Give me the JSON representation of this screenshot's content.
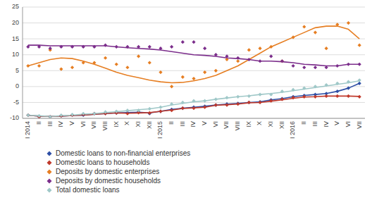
{
  "chart_data": {
    "type": "line",
    "categories": [
      "I 2014",
      "II",
      "III",
      "IV",
      "V",
      "VI",
      "VII",
      "VIII",
      "IX",
      "X",
      "XI",
      "XII",
      "I 2015",
      "II",
      "III",
      "IV",
      "V",
      "VI",
      "VII",
      "VIII",
      "IX",
      "X",
      "XI",
      "XII",
      "I 2016",
      "II",
      "III",
      "IV",
      "V",
      "VI",
      "VII"
    ],
    "ylim": [
      -10,
      25
    ],
    "yticks": [
      -10,
      -5,
      0,
      5,
      10,
      15,
      20,
      25
    ],
    "grid": true,
    "legend": "bottom",
    "marker": "diamond",
    "series": [
      {
        "name": "Domestic loans to non-financial enterprises",
        "color": "#2e4fa5",
        "values": [
          -9.0,
          -9.5,
          -9.5,
          -9.2,
          -9.0,
          -9.0,
          -8.5,
          -8.5,
          -8.3,
          -8.2,
          -8.0,
          -8.5,
          -7.8,
          -7.2,
          -6.8,
          -6.5,
          -6.2,
          -5.8,
          -5.5,
          -5.3,
          -5.0,
          -4.8,
          -4.2,
          -3.8,
          -3.2,
          -2.8,
          -2.5,
          -2.2,
          -1.5,
          -0.5,
          1.0
        ],
        "line_values": [
          -9.0,
          -9.3,
          -9.4,
          -9.3,
          -9.1,
          -9.0,
          -8.7,
          -8.5,
          -8.3,
          -8.2,
          -8.1,
          -8.3,
          -7.8,
          -7.2,
          -6.8,
          -6.5,
          -6.2,
          -5.8,
          -5.5,
          -5.3,
          -5.0,
          -4.8,
          -4.2,
          -3.8,
          -3.2,
          -2.8,
          -2.5,
          -2.2,
          -1.5,
          -0.5,
          1.0
        ]
      },
      {
        "name": "Domestic loans to households",
        "color": "#c0392b",
        "values": [
          -9.0,
          -9.5,
          -9.5,
          -9.2,
          -9.0,
          -8.8,
          -8.5,
          -8.5,
          -8.3,
          -8.5,
          -8.2,
          -8.3,
          -7.8,
          -7.5,
          -6.8,
          -6.8,
          -6.5,
          -5.8,
          -5.8,
          -5.5,
          -5.0,
          -5.0,
          -4.5,
          -4.0,
          -3.5,
          -3.2,
          -3.2,
          -3.0,
          -3.0,
          -3.0,
          -3.2
        ],
        "line_values": [
          -9.0,
          -9.3,
          -9.4,
          -9.3,
          -9.1,
          -9.0,
          -8.7,
          -8.5,
          -8.3,
          -8.4,
          -8.3,
          -8.2,
          -7.8,
          -7.4,
          -6.9,
          -6.7,
          -6.5,
          -5.9,
          -5.7,
          -5.5,
          -5.1,
          -5.0,
          -4.6,
          -4.2,
          -3.7,
          -3.3,
          -3.2,
          -3.0,
          -3.0,
          -3.0,
          -3.1
        ]
      },
      {
        "name": "Deposits by domestic enterprises",
        "color": "#e67e22",
        "values": [
          6.5,
          6.5,
          11.5,
          5.5,
          6.0,
          7.5,
          7.5,
          9.0,
          7.0,
          6.0,
          9.5,
          7.5,
          4.5,
          0.0,
          3.0,
          2.5,
          4.5,
          5.0,
          8.5,
          8.0,
          11.5,
          12.0,
          12.5,
          8.0,
          15.5,
          18.8,
          17.0,
          12.0,
          19.5,
          20.0,
          13.0
        ],
        "line_values": [
          6.5,
          7.5,
          8.5,
          9.0,
          8.8,
          8.0,
          7.0,
          5.8,
          4.5,
          3.5,
          2.8,
          2.0,
          1.5,
          1.2,
          1.3,
          1.8,
          2.5,
          3.5,
          5.0,
          6.5,
          8.5,
          10.5,
          12.5,
          14.0,
          15.5,
          17.0,
          18.5,
          19.0,
          19.0,
          18.0,
          15.0
        ]
      },
      {
        "name": "Deposits by domestic households",
        "color": "#7b2d8b",
        "values": [
          12.5,
          12.5,
          12.0,
          12.5,
          12.5,
          12.5,
          12.5,
          13.0,
          12.5,
          12.5,
          12.5,
          12.5,
          12.0,
          12.5,
          14.0,
          14.0,
          12.0,
          10.0,
          9.5,
          9.0,
          8.5,
          8.0,
          9.5,
          8.0,
          6.5,
          6.0,
          6.0,
          6.0,
          6.5,
          7.0,
          7.0
        ],
        "line_values": [
          13.0,
          13.0,
          12.8,
          12.8,
          12.8,
          12.8,
          12.8,
          12.8,
          12.5,
          12.2,
          12.0,
          11.8,
          11.5,
          11.0,
          10.5,
          10.0,
          9.8,
          9.5,
          9.0,
          8.8,
          8.5,
          8.0,
          8.0,
          7.8,
          7.5,
          7.0,
          6.8,
          6.5,
          6.5,
          7.0,
          7.0
        ]
      },
      {
        "name": "Total domestic loans",
        "color": "#9fc8c8",
        "values": [
          -9.0,
          -9.2,
          -9.5,
          -9.0,
          -8.8,
          -8.5,
          -8.5,
          -8.0,
          -7.8,
          -7.5,
          -7.5,
          -7.0,
          -6.5,
          -5.5,
          -5.0,
          -4.5,
          -4.5,
          -4.0,
          -3.5,
          -3.2,
          -3.0,
          -2.5,
          -2.5,
          -1.5,
          -1.0,
          -0.5,
          0.0,
          0.5,
          1.0,
          1.5,
          2.0
        ],
        "line_values": [
          -9.0,
          -9.2,
          -9.4,
          -9.2,
          -9.0,
          -8.7,
          -8.5,
          -8.2,
          -7.9,
          -7.6,
          -7.3,
          -7.0,
          -6.5,
          -5.8,
          -5.3,
          -4.8,
          -4.5,
          -4.0,
          -3.6,
          -3.2,
          -2.9,
          -2.5,
          -2.2,
          -1.8,
          -1.3,
          -0.8,
          -0.3,
          0.2,
          0.7,
          1.2,
          1.8
        ]
      }
    ]
  }
}
